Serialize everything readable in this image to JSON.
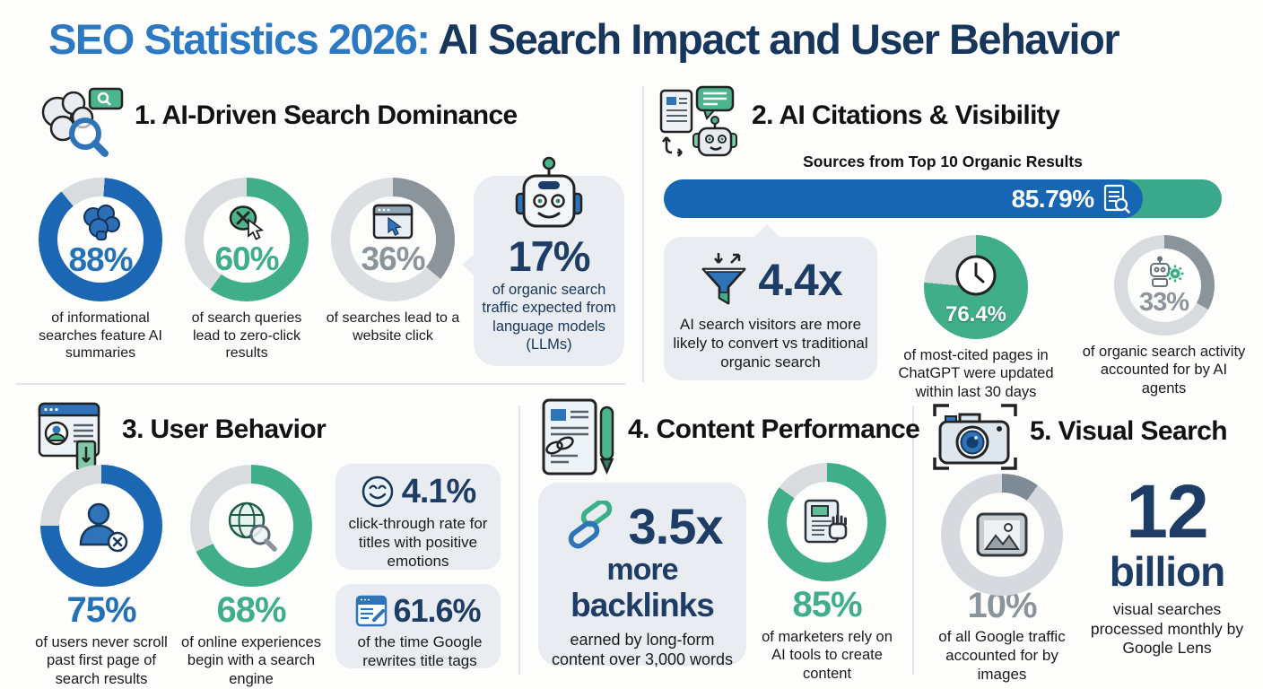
{
  "title": {
    "highlight": "SEO Statistics 2026:",
    "rest": " AI Search Impact and User Behavior"
  },
  "colors": {
    "blue": "#1e6ab5",
    "green": "#3fae89",
    "gray": "#8b949b",
    "navy": "#1d3c66",
    "card_bg": "#e9edf2",
    "track": "#d8dcdf",
    "title_blue": "#2b79c2"
  },
  "sections": {
    "s1": {
      "title": "1. AI-Driven Search Dominance",
      "stats": [
        {
          "value": "88%",
          "caption": "of informational searches feature AI summaries",
          "donut": {
            "pct": 88,
            "color": "#1b67b3",
            "track": "#d8dcdf",
            "from": 4
          }
        },
        {
          "value": "60%",
          "caption": "of search queries lead to zero-click results",
          "donut": {
            "pct": 60,
            "color": "#3fae89",
            "track": "#d8dcdf",
            "from": 0
          }
        },
        {
          "value": "36%",
          "caption": "of searches lead to a website click",
          "donut": {
            "pct": 36,
            "color": "#8b949b",
            "track": "#dcdfe2",
            "from": 0
          }
        }
      ],
      "callout": {
        "value": "17%",
        "caption": "of organic search traffic expected from language models (LLMs)"
      }
    },
    "s2": {
      "title": "2. AI Citations & Visibility",
      "bar_label": "Sources from Top 10 Organic Results",
      "bar": {
        "value": "85.79%",
        "pct": 85.79
      },
      "funnel_stat": {
        "value": "4.4x",
        "caption": "AI search visitors are more likely to convert vs traditional organic search"
      },
      "pie_stat": {
        "value": "76.4%",
        "caption": "of most-cited pages in ChatGPT were updated within last 30 days",
        "donut": {
          "pct": 76.4,
          "color": "#3fae89",
          "track": "#d8dcdf",
          "from": 0
        }
      },
      "agent_stat": {
        "value": "33%",
        "caption": "of organic search activity accounted for by AI agents",
        "donut": {
          "pct": 33,
          "color": "#8b949b",
          "track": "#d8dcdf",
          "from": 0
        }
      }
    },
    "s3": {
      "title": "3. User Behavior",
      "stats": [
        {
          "value": "75%",
          "caption": "of users never scroll past first page of search results",
          "donut": {
            "pct": 75,
            "color": "#1b67b3",
            "track": "#d8dcdf",
            "from": 0
          }
        },
        {
          "value": "68%",
          "caption": "of online experiences begin with a search engine",
          "donut": {
            "pct": 68,
            "color": "#3fae89",
            "track": "#d8dcdf",
            "from": 0
          }
        }
      ],
      "cards": [
        {
          "value": "4.1%",
          "caption": "click-through rate for titles with positive emotions"
        },
        {
          "value": "61.6%",
          "caption": "of the time Google rewrites title tags"
        }
      ]
    },
    "s4": {
      "title": "4. Content Performance",
      "backlinks": {
        "value": "3.5x",
        "line2": "more",
        "line3": "backlinks",
        "caption": "earned by long-form content over 3,000 words"
      },
      "ai_stat": {
        "value": "85%",
        "caption": "of marketers rely on AI tools to create content",
        "donut": {
          "pct": 85,
          "color": "#3fae89",
          "track": "#d8dcdf",
          "from": 0
        }
      }
    },
    "s5": {
      "title": "5. Visual Search",
      "image_stat": {
        "value": "10%",
        "caption": "of all Google traffic accounted for by images",
        "donut": {
          "pct": 10,
          "color": "#7e8b96",
          "track": "#d6dade",
          "from": 0
        }
      },
      "lens_stat": {
        "value": "12",
        "unit": "billion",
        "caption": "visual searches processed monthly by Google Lens"
      }
    }
  },
  "chart_data": [
    {
      "type": "donut",
      "section": "1. AI-Driven Search Dominance",
      "value": 88,
      "unit": "%",
      "label": "of informational searches feature AI summaries",
      "color": "#1b67b3"
    },
    {
      "type": "donut",
      "section": "1. AI-Driven Search Dominance",
      "value": 60,
      "unit": "%",
      "label": "of search queries lead to zero-click results",
      "color": "#3fae89"
    },
    {
      "type": "donut",
      "section": "1. AI-Driven Search Dominance",
      "value": 36,
      "unit": "%",
      "label": "of searches lead to a website click",
      "color": "#8b949b"
    },
    {
      "type": "stat",
      "section": "1. AI-Driven Search Dominance",
      "value": 17,
      "unit": "%",
      "label": "of organic search traffic expected from language models (LLMs)"
    },
    {
      "type": "bar",
      "section": "2. AI Citations & Visibility",
      "value": 85.79,
      "unit": "%",
      "label": "Sources from Top 10 Organic Results",
      "color": "#1666b3"
    },
    {
      "type": "stat",
      "section": "2. AI Citations & Visibility",
      "value": 4.4,
      "unit": "x",
      "label": "AI search visitors are more likely to convert vs traditional organic search"
    },
    {
      "type": "pie",
      "section": "2. AI Citations & Visibility",
      "value": 76.4,
      "unit": "%",
      "label": "of most-cited pages in ChatGPT were updated within last 30 days",
      "color": "#3fae89"
    },
    {
      "type": "donut",
      "section": "2. AI Citations & Visibility",
      "value": 33,
      "unit": "%",
      "label": "of organic search activity accounted for by AI agents",
      "color": "#8b949b"
    },
    {
      "type": "donut",
      "section": "3. User Behavior",
      "value": 75,
      "unit": "%",
      "label": "of users never scroll past first page of search results",
      "color": "#1b67b3"
    },
    {
      "type": "donut",
      "section": "3. User Behavior",
      "value": 68,
      "unit": "%",
      "label": "of online experiences begin with a search engine",
      "color": "#3fae89"
    },
    {
      "type": "stat",
      "section": "3. User Behavior",
      "value": 4.1,
      "unit": "%",
      "label": "click-through rate for titles with positive emotions"
    },
    {
      "type": "stat",
      "section": "3. User Behavior",
      "value": 61.6,
      "unit": "%",
      "label": "of the time Google rewrites title tags"
    },
    {
      "type": "stat",
      "section": "4. Content Performance",
      "value": 3.5,
      "unit": "x",
      "label": "more backlinks earned by long-form content over 3,000 words"
    },
    {
      "type": "donut",
      "section": "4. Content Performance",
      "value": 85,
      "unit": "%",
      "label": "of marketers rely on AI tools to create content",
      "color": "#3fae89"
    },
    {
      "type": "donut",
      "section": "5. Visual Search",
      "value": 10,
      "unit": "%",
      "label": "of all Google traffic accounted for by images",
      "color": "#7e8b96"
    },
    {
      "type": "stat",
      "section": "5. Visual Search",
      "value": 12,
      "unit": "billion",
      "label": "visual searches processed monthly by Google Lens"
    }
  ]
}
